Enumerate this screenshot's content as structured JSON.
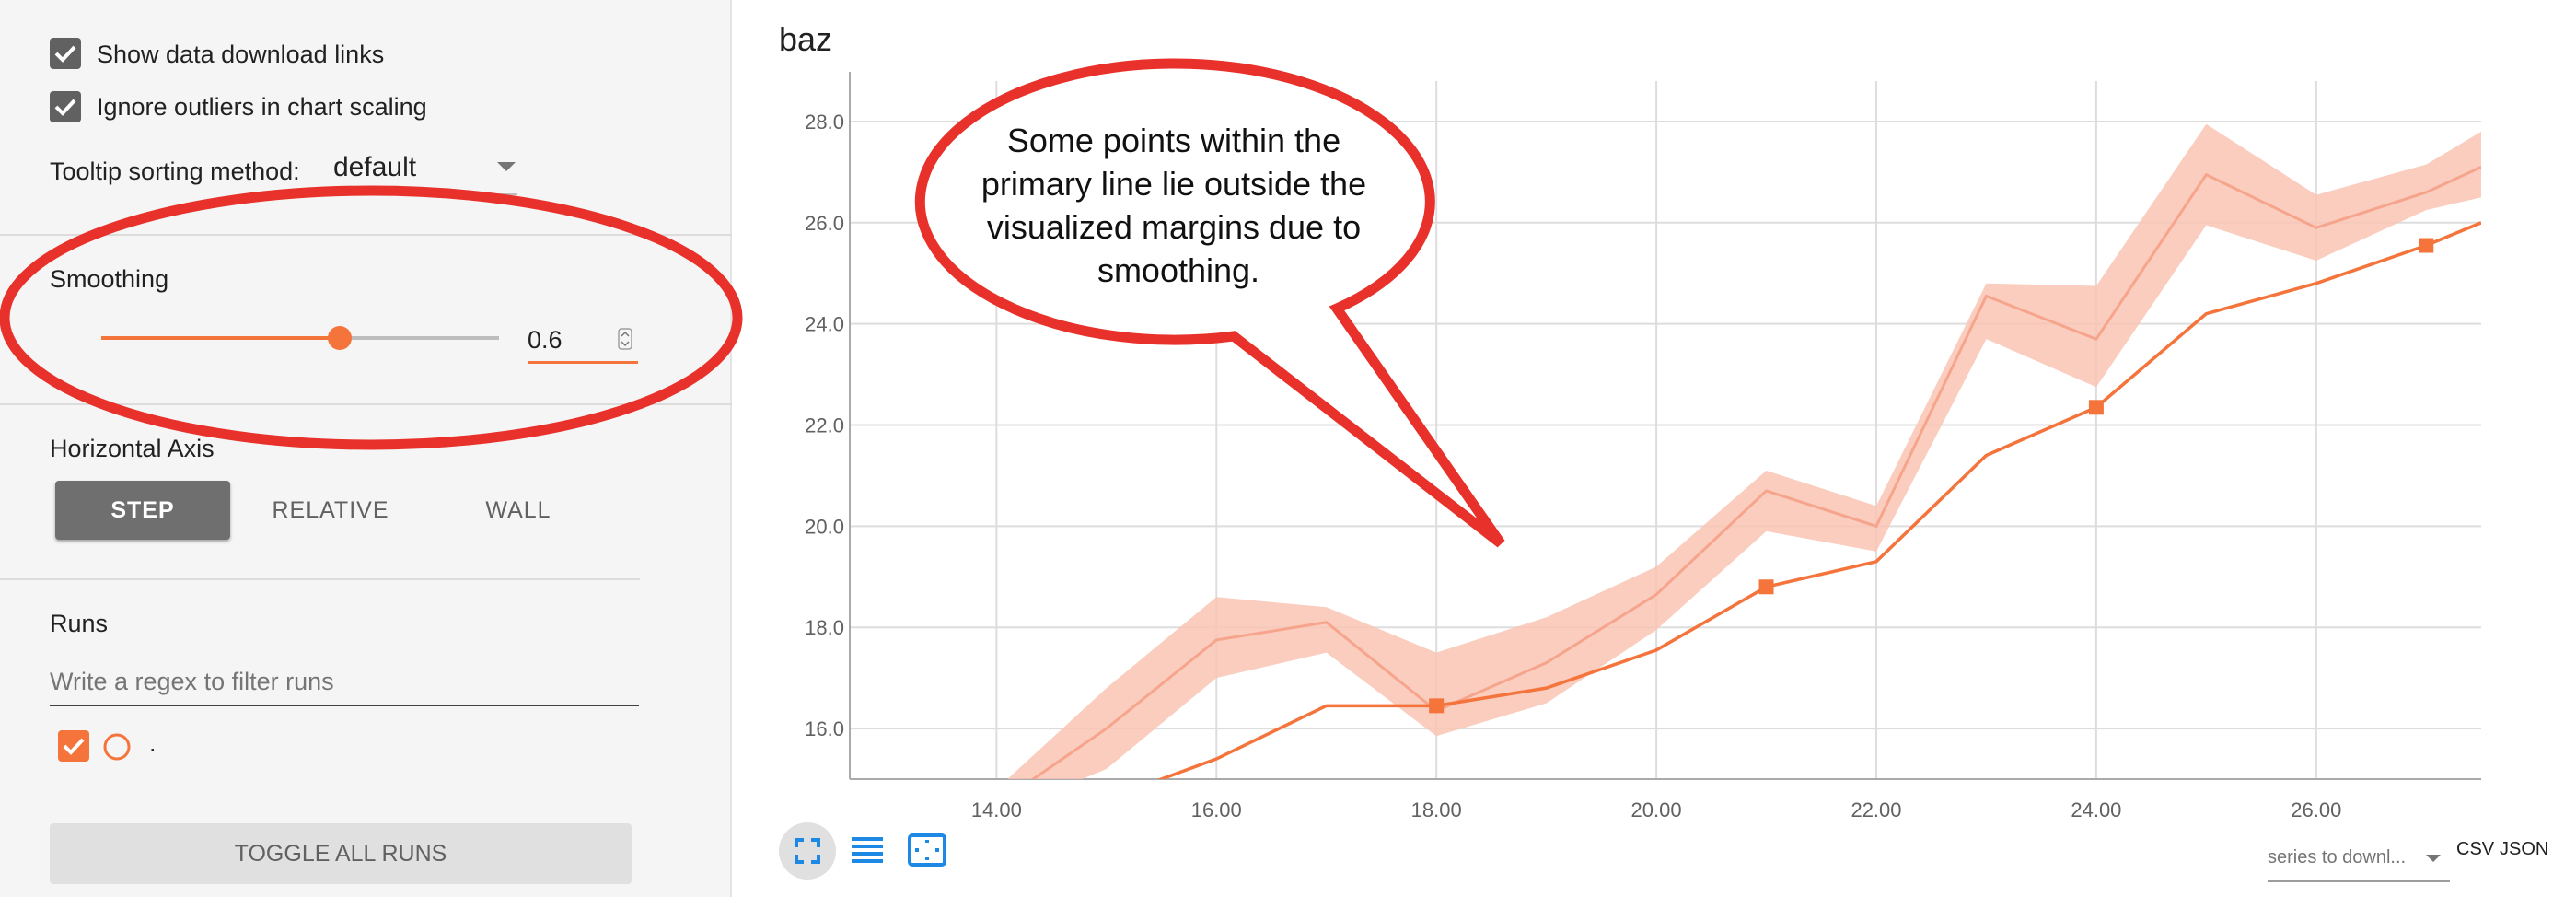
{
  "sidebar": {
    "show_download_links": {
      "label": "Show data download links",
      "checked": true
    },
    "ignore_outliers": {
      "label": "Ignore outliers in chart scaling",
      "checked": true
    },
    "tooltip_sorting": {
      "label": "Tooltip sorting method:",
      "value": "default"
    },
    "smoothing": {
      "label": "Smoothing",
      "value": "0.6",
      "fraction": 0.6
    },
    "horizontal_axis": {
      "label": "Horizontal Axis",
      "options": [
        "STEP",
        "RELATIVE",
        "WALL"
      ],
      "selected": "STEP"
    },
    "runs": {
      "label": "Runs",
      "filter_placeholder": "Write a regex to filter runs",
      "items": [
        {
          "name": ".",
          "checked": true
        }
      ],
      "toggle_all_label": "TOGGLE ALL RUNS"
    }
  },
  "callout": {
    "lines": [
      "Some points within the",
      "primary line lie outside the",
      "visualized margins due to",
      "smoothing."
    ]
  },
  "footer": {
    "series_select_placeholder": "series to downl...",
    "csv_label": "CSV",
    "json_label": "JSON"
  },
  "colors": {
    "accent": "#f4743c",
    "band": "#f9c4b4",
    "highlight": "#e8312a"
  },
  "icons": [
    "expand-icon",
    "list-icon",
    "fit-domain-icon",
    "chevron-down-icon",
    "check-icon"
  ],
  "chart_data": {
    "type": "line",
    "title": "baz",
    "xlim": [
      12.8,
      27.5
    ],
    "ylim": [
      15.0,
      28.8
    ],
    "xticks": [
      14,
      16,
      18,
      20,
      22,
      24,
      26
    ],
    "yticks": [
      16,
      18,
      20,
      22,
      24,
      26,
      28
    ],
    "xtick_labels": [
      "14.00",
      "16.00",
      "18.00",
      "20.00",
      "22.00",
      "24.00",
      "26.00"
    ],
    "ytick_labels": [
      "16.0",
      "18.0",
      "20.0",
      "22.0",
      "24.0",
      "26.0",
      "28.0"
    ],
    "grid": true,
    "series": [
      {
        "role": "smoothed",
        "x": [
          15,
          16,
          17,
          18,
          19,
          20,
          21,
          22,
          23,
          24,
          25,
          26,
          27,
          27.5
        ],
        "y": [
          14.6,
          15.4,
          16.45,
          16.45,
          16.8,
          17.55,
          18.8,
          19.3,
          21.4,
          22.35,
          24.2,
          24.8,
          25.55,
          26.0
        ],
        "markers_at": [
          18,
          21,
          24,
          27
        ]
      },
      {
        "role": "raw",
        "x": [
          14,
          15,
          16,
          17,
          18,
          19,
          20,
          21,
          22,
          23,
          24,
          25,
          26,
          27,
          27.5
        ],
        "y": [
          14.5,
          16.0,
          17.75,
          18.1,
          16.35,
          17.3,
          18.65,
          20.7,
          20.0,
          24.55,
          23.7,
          26.95,
          25.9,
          26.6,
          27.1
        ],
        "band": [
          [
            14.3,
            14.8
          ],
          [
            15.2,
            16.8
          ],
          [
            17.0,
            18.6
          ],
          [
            17.5,
            18.4
          ],
          [
            15.85,
            17.5
          ],
          [
            16.5,
            18.2
          ],
          [
            17.95,
            19.2
          ],
          [
            19.9,
            21.1
          ],
          [
            19.5,
            20.4
          ],
          [
            23.7,
            24.8
          ],
          [
            22.75,
            24.75
          ],
          [
            25.95,
            27.95
          ],
          [
            25.25,
            26.55
          ],
          [
            26.25,
            27.15
          ],
          [
            26.5,
            27.8
          ]
        ]
      }
    ]
  }
}
